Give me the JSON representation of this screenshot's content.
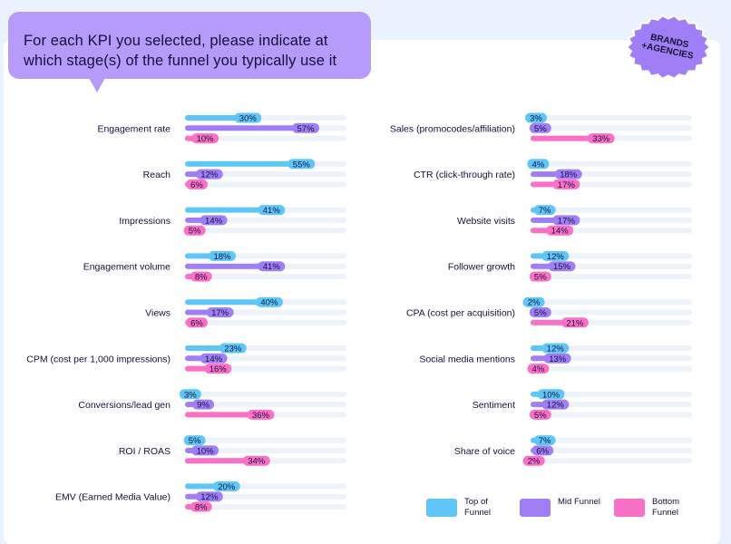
{
  "header": {
    "question": "For each KPI you selected, please indicate at which stage(s) of the funnel you typically use it",
    "badge": "BRANDS\n+AGENCIES"
  },
  "colors": {
    "top": "#5ec7f8",
    "mid": "#a07ef5",
    "bottom": "#fa70c6",
    "track": "#eef3fa",
    "bubble": "#b69bfb",
    "badge": "#a07ef5"
  },
  "legend": [
    {
      "series": "top",
      "label": "Top of Funnel"
    },
    {
      "series": "mid",
      "label": "Mid Funnel"
    },
    {
      "series": "bottom",
      "label": "Bottom Funnel"
    }
  ],
  "chart_data": {
    "type": "bar",
    "orientation": "horizontal",
    "title": "For each KPI you selected, please indicate at which stage(s) of the funnel you typically use it",
    "series_names": [
      "Top of Funnel",
      "Mid Funnel",
      "Bottom Funnel"
    ],
    "xlim": [
      0,
      100
    ],
    "panels": [
      {
        "categories": [
          "Engagement rate",
          "Reach",
          "Impressions",
          "Engagement volume",
          "Views",
          "CPM (cost per 1,000 impressions)",
          "Conversions/lead gen",
          "ROI / ROAS",
          "EMV (Earned Media Value)"
        ],
        "series": [
          {
            "name": "Top of Funnel",
            "values": [
              30,
              55,
              41,
              18,
              40,
              23,
              3,
              5,
              20
            ]
          },
          {
            "name": "Mid Funnel",
            "values": [
              57,
              12,
              14,
              41,
              17,
              14,
              9,
              10,
              12
            ]
          },
          {
            "name": "Bottom Funnel",
            "values": [
              10,
              6,
              5,
              8,
              6,
              16,
              36,
              34,
              8
            ]
          }
        ]
      },
      {
        "categories": [
          "Sales (promocodes/affiliation)",
          "CTR (click-through rate)",
          "Website visits",
          "Follower growth",
          "CPA (cost per acquisition)",
          "Social media mentions",
          "Sentiment",
          "Share of voice"
        ],
        "series": [
          {
            "name": "Top of Funnel",
            "values": [
              3,
              4,
              7,
              12,
              2,
              12,
              10,
              7
            ]
          },
          {
            "name": "Mid Funnel",
            "values": [
              5,
              18,
              17,
              15,
              5,
              13,
              12,
              6
            ]
          },
          {
            "name": "Bottom Funnel",
            "values": [
              33,
              17,
              14,
              5,
              21,
              4,
              5,
              2
            ]
          }
        ]
      }
    ]
  }
}
